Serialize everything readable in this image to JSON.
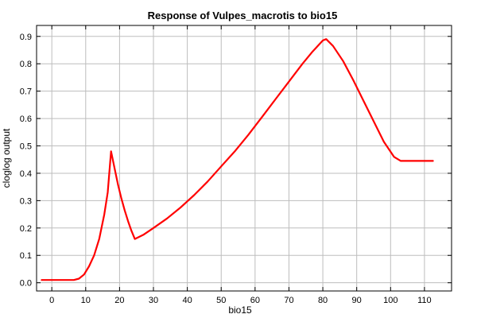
{
  "chart_data": {
    "type": "line",
    "title": "Response of Vulpes_macrotis to bio15",
    "xlabel": "bio15",
    "ylabel": "cloglog output",
    "xlim": [
      -4.5,
      118
    ],
    "ylim": [
      -0.03,
      0.94
    ],
    "xticks": [
      0,
      10,
      20,
      30,
      40,
      50,
      60,
      70,
      80,
      90,
      100,
      110
    ],
    "yticks": [
      0.0,
      0.1,
      0.2,
      0.3,
      0.4,
      0.5,
      0.6,
      0.7,
      0.8,
      0.9
    ],
    "x_tick_labels": [
      "0",
      "10",
      "20",
      "30",
      "40",
      "50",
      "60",
      "70",
      "80",
      "90",
      "100",
      "110"
    ],
    "y_tick_labels": [
      "0.0",
      "0.1",
      "0.2",
      "0.3",
      "0.4",
      "0.5",
      "0.6",
      "0.7",
      "0.8",
      "0.9"
    ],
    "grid": true,
    "series": [
      {
        "color": "#ff0000",
        "x": [
          -3,
          6.5,
          8,
          9.5,
          11,
          12.5,
          14,
          15.5,
          16.5,
          17.5,
          18.5,
          19.5,
          20.5,
          21.5,
          22.5,
          23.5,
          24.5,
          27,
          30,
          34,
          38,
          42,
          46,
          50,
          54,
          58,
          62,
          66,
          70,
          74,
          77,
          80,
          81,
          83,
          86,
          89,
          92,
          95,
          98,
          101,
          103,
          112.5
        ],
        "y": [
          0.01,
          0.01,
          0.015,
          0.03,
          0.06,
          0.1,
          0.16,
          0.25,
          0.33,
          0.48,
          0.42,
          0.36,
          0.31,
          0.265,
          0.225,
          0.19,
          0.16,
          0.175,
          0.2,
          0.235,
          0.275,
          0.32,
          0.37,
          0.425,
          0.48,
          0.54,
          0.605,
          0.67,
          0.735,
          0.8,
          0.845,
          0.885,
          0.89,
          0.865,
          0.81,
          0.74,
          0.665,
          0.59,
          0.515,
          0.46,
          0.445,
          0.445
        ]
      }
    ]
  }
}
